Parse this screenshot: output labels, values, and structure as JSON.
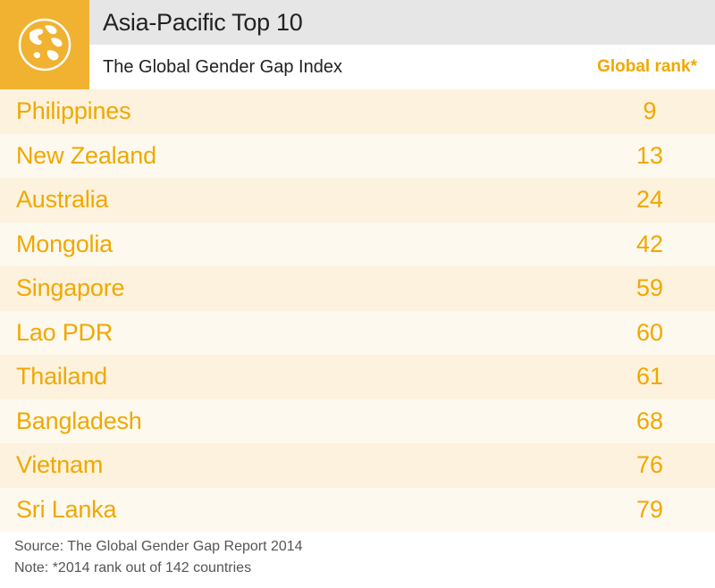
{
  "header": {
    "title": "Asia-Pacific Top 10",
    "subtitle": "The Global Gender Gap Index",
    "rank_column_label": "Global rank*",
    "logo_icon": "globe-icon"
  },
  "colors": {
    "accent": "#f0b230",
    "text_accent": "#f0a800",
    "row_odd": "#fcf2dd",
    "row_even": "#fef9ee",
    "title_bar": "#e6e6e6"
  },
  "chart_data": {
    "type": "table",
    "title": "Asia-Pacific Top 10",
    "subtitle": "The Global Gender Gap Index",
    "columns": [
      "",
      "Global rank*"
    ],
    "rows": [
      {
        "country": "Philippines",
        "rank": "9"
      },
      {
        "country": "New Zealand",
        "rank": "13"
      },
      {
        "country": "Australia",
        "rank": "24"
      },
      {
        "country": "Mongolia",
        "rank": "42"
      },
      {
        "country": "Singapore",
        "rank": "59"
      },
      {
        "country": "Lao PDR",
        "rank": "60"
      },
      {
        "country": "Thailand",
        "rank": "61"
      },
      {
        "country": "Bangladesh",
        "rank": "68"
      },
      {
        "country": "Vietnam",
        "rank": "76"
      },
      {
        "country": "Sri Lanka",
        "rank": "79"
      }
    ]
  },
  "footer": {
    "source": "Source: The Global Gender Gap Report 2014",
    "note": "Note: *2014 rank out of 142 countries"
  }
}
